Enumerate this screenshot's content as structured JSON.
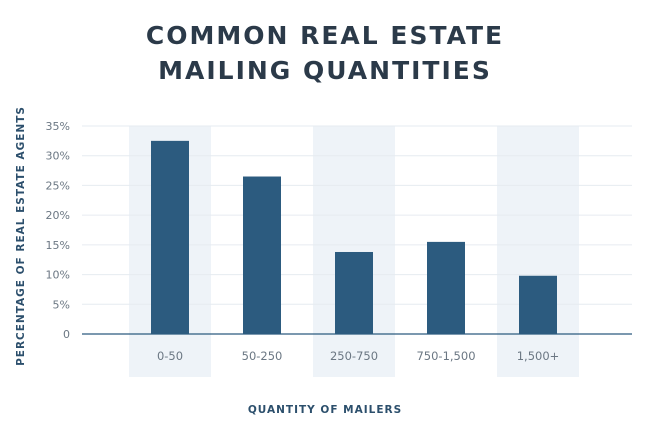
{
  "title_lines": [
    "COMMON REAL ESTATE",
    "MAILING QUANTITIES"
  ],
  "colors": {
    "bar": "#2c5b7f",
    "band": "#eef3f8",
    "grid": "#e6ebf0",
    "axis": "#2c5b7f",
    "tick_text": "#6b7783"
  },
  "chart_data": {
    "type": "bar",
    "title": "COMMON REAL ESTATE MAILING QUANTITIES",
    "xlabel": "QUANTITY OF MAILERS",
    "ylabel": "PERCENTAGE OF REAL ESTATE AGENTS",
    "categories": [
      "0-50",
      "50-250",
      "250-750",
      "750-1,500",
      "1,500+"
    ],
    "values": [
      32.5,
      26.5,
      13.8,
      15.5,
      9.8
    ],
    "ylim": [
      0,
      35
    ],
    "yticks": [
      0,
      5,
      10,
      15,
      20,
      25,
      30,
      35
    ],
    "ytick_labels": [
      "0",
      "5%",
      "10%",
      "15%",
      "20%",
      "25%",
      "30%",
      "35%"
    ],
    "grid": true,
    "legend": "none",
    "alternating_bands": true
  }
}
